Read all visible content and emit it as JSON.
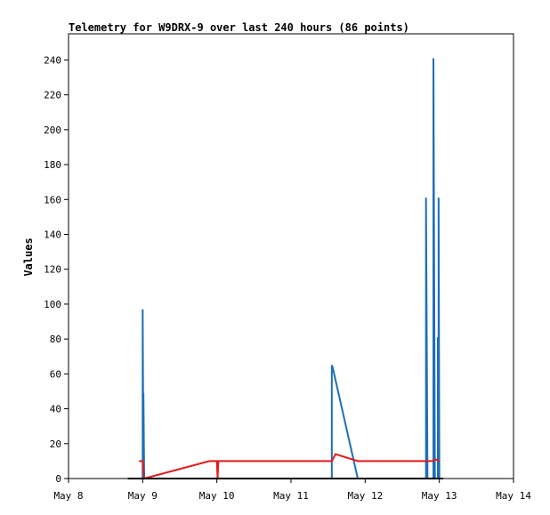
{
  "chart_data": {
    "type": "line",
    "title": "Telemetry for W9DRX-9 over last 240 hours (86 points)",
    "xlabel": "",
    "ylabel": "Values",
    "x_tick_labels": [
      "May 8",
      "May 9",
      "May 10",
      "May 11",
      "May 12",
      "May 13",
      "May 14"
    ],
    "x_tick_positions_days": [
      0,
      1,
      2,
      3,
      4,
      5,
      6
    ],
    "xlim_days": [
      0,
      6
    ],
    "ylim": [
      0,
      255
    ],
    "y_ticks": [
      0,
      20,
      40,
      60,
      80,
      100,
      120,
      140,
      160,
      180,
      200,
      220,
      240
    ],
    "grid": false,
    "series": [
      {
        "color": "#1f6fb5",
        "x_days": [
          0.8,
          0.99,
          1.0,
          1.0,
          1.01,
          1.01,
          1.02,
          1.02,
          1.05,
          3.55,
          3.55,
          3.56,
          3.9,
          3.9,
          4.82,
          4.82,
          4.84,
          4.84,
          4.92,
          4.92,
          4.94,
          4.94,
          4.98,
          4.98,
          4.99,
          4.99,
          5.0,
          5.0,
          5.02
        ],
        "values": [
          0,
          0,
          0,
          97,
          0,
          49,
          0,
          0,
          0,
          0,
          65,
          64,
          0,
          0,
          0,
          161,
          0,
          0,
          0,
          241,
          0,
          0,
          0,
          81,
          0,
          161,
          0,
          0,
          0
        ]
      },
      {
        "color": "#e41a1c",
        "x_days": [
          0.95,
          1.0,
          1.02,
          1.9,
          2.0,
          2.01,
          2.02,
          3.55,
          3.6,
          3.9,
          4.9,
          4.95,
          5.0
        ],
        "values": [
          10,
          10,
          0,
          10,
          10,
          0,
          10,
          10,
          14,
          10,
          10,
          11,
          10
        ]
      }
    ]
  }
}
